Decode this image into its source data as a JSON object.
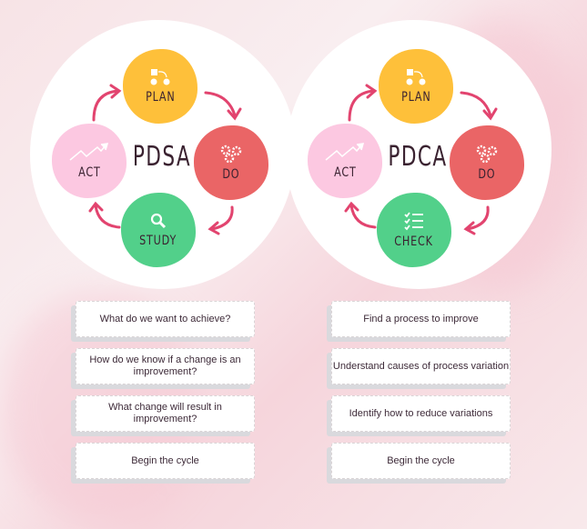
{
  "colors": {
    "plan": "#fec03a",
    "do": "#ea6566",
    "study_check": "#52d08a",
    "act": "#fcc8e1",
    "arrow": "#e2446f",
    "text": "#3a2230"
  },
  "pdsa": {
    "title": "PDSA",
    "nodes": {
      "plan": {
        "label": "PLAN",
        "icon": "shapes-flow-icon"
      },
      "do": {
        "label": "DO",
        "icon": "gears-icon"
      },
      "study": {
        "label": "STUDY",
        "icon": "magnifier-icon"
      },
      "act": {
        "label": "ACT",
        "icon": "trend-up-icon"
      }
    },
    "steps": [
      "What do we want to achieve?",
      "How do we know if a change is an improvement?",
      "What change will result in improvement?",
      "Begin the cycle"
    ]
  },
  "pdca": {
    "title": "PDCA",
    "nodes": {
      "plan": {
        "label": "PLAN",
        "icon": "shapes-flow-icon"
      },
      "do": {
        "label": "DO",
        "icon": "gears-icon"
      },
      "check": {
        "label": "CHECK",
        "icon": "checklist-icon"
      },
      "act": {
        "label": "ACT",
        "icon": "trend-up-icon"
      }
    },
    "steps": [
      "Find a process to improve",
      "Understand causes of process variation",
      "Identify how to reduce variations",
      "Begin the cycle"
    ]
  }
}
